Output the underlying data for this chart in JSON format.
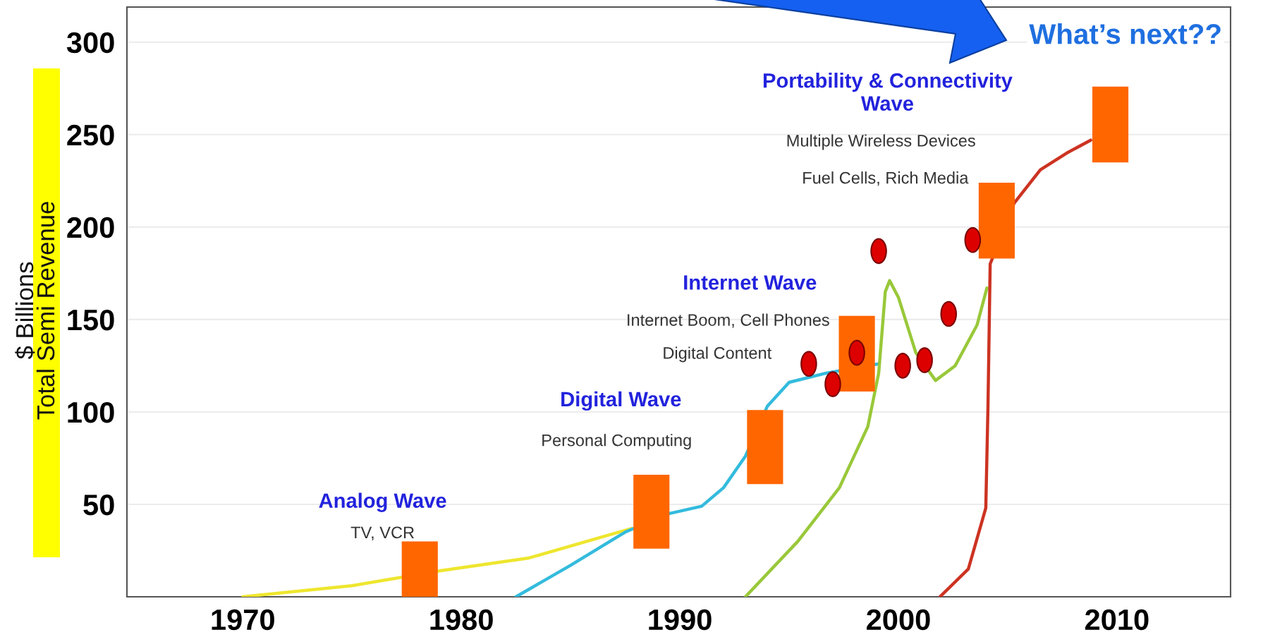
{
  "chart_data": {
    "type": "line",
    "ylabel": "$ Billions\nTotal Semi Revenue",
    "xlim": [
      1964.7,
      2015.2
    ],
    "ylim": [
      0,
      319
    ],
    "xticks": [
      1970,
      1980,
      1990,
      2000,
      2010
    ],
    "yticks": [
      50,
      100,
      150,
      200,
      250,
      300
    ],
    "grid": "y",
    "legend": false,
    "series": [
      {
        "color": "#eee62e",
        "x": [
          1970.0,
          1975.0,
          1979.0,
          1983.1,
          1987.8
        ],
        "values": [
          0,
          6,
          14,
          21,
          37
        ]
      },
      {
        "color": "#33bbdd",
        "x": [
          1982.5,
          1985.0,
          1987.5,
          1989.5,
          1991.0,
          1992.0,
          1993.0,
          1994.0,
          1995.0,
          1996.7,
          1999.1
        ],
        "values": [
          0,
          17,
          35,
          45,
          49,
          59,
          76,
          103,
          116,
          121,
          126
        ]
      },
      {
        "color": "#99c83a",
        "x": [
          1993.0,
          1995.4,
          1997.3,
          1998.6,
          1999.1,
          1999.4,
          1999.6,
          2000.0,
          2000.8,
          2001.7,
          2002.6,
          2003.6,
          2004.05
        ],
        "values": [
          0,
          30,
          59,
          92,
          121,
          165,
          171,
          162,
          132,
          117,
          125,
          147,
          167
        ]
      },
      {
        "color": "#cc3322",
        "x": [
          2001.9,
          2003.2,
          2004.0,
          2004.1,
          2004.2,
          2005.3,
          2006.5,
          2007.7,
          2008.8
        ],
        "values": [
          0,
          15,
          48,
          103,
          180,
          213,
          231,
          240,
          247
        ]
      },
      {
        "type": "bar",
        "color": "#ff6600",
        "x": [
          1978.1,
          1988.7,
          1993.9,
          1998.1,
          2004.5,
          2009.7
        ],
        "base": [
          0,
          26,
          61,
          111,
          183,
          235
        ],
        "values": [
          30,
          40,
          40,
          41,
          41,
          41
        ]
      },
      {
        "type": "scatter",
        "color": "#dd0000",
        "marker": "circle",
        "x": [
          1995.9,
          1997.0,
          1998.1,
          1999.1,
          2000.2,
          2001.2,
          2002.3,
          2003.4
        ],
        "values": [
          126,
          115,
          132,
          187,
          125,
          128,
          153,
          193
        ]
      }
    ],
    "annotations": [
      "Analog Wave",
      "TV, VCR",
      "Digital Wave",
      "Personal Computing",
      "Internet Wave",
      "Internet Boom, Cell Phones",
      "Digital Content",
      "Portability & Connectivity\nWave",
      "Multiple Wireless Devices",
      "Fuel Cells, Rich Media",
      "What’s next??"
    ]
  }
}
